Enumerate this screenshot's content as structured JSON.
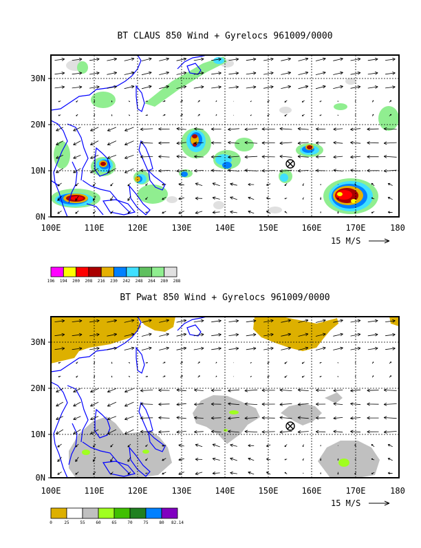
{
  "charts": [
    {
      "title": "BT CLAUS 850 Wind + Gyrelocs 961009/0000",
      "xticks": [
        "100E",
        "110E",
        "120E",
        "130E",
        "140E",
        "150E",
        "160E",
        "170E",
        "180"
      ],
      "yticks": [
        "0N",
        "10N",
        "20N",
        "30N"
      ],
      "legend_labels": [
        "196",
        "194",
        "200",
        "208",
        "216",
        "230",
        "242",
        "248",
        "264",
        "280",
        "288"
      ],
      "legend_colors": [
        "#ff00ff",
        "#ffff00",
        "#ff0000",
        "#aa0000",
        "#e6b000",
        "#0080ff",
        "#40e0ff",
        "#60c060",
        "#90ee90",
        "#e0e0e0"
      ]
    },
    {
      "title": "BT Pwat 850 Wind + Gyrelocs 961009/0000",
      "xticks": [
        "100E",
        "110E",
        "120E",
        "130E",
        "140E",
        "150E",
        "160E",
        "170E",
        "180"
      ],
      "yticks": [
        "0N",
        "10N",
        "20N",
        "30N"
      ],
      "legend_labels": [
        "0",
        "25",
        "55",
        "60",
        "65",
        "70",
        "75",
        "80",
        "82.14"
      ],
      "legend_colors": [
        "#ddb000",
        "#ffffff",
        "#c0c0c0",
        "#a0ff20",
        "#40c000",
        "#208020",
        "#0080ff",
        "#8000c0"
      ]
    }
  ],
  "vector_key": "15 M/S",
  "chart_data": [
    {
      "type": "heatmap",
      "title": "BT CLAUS 850 Wind + Gyrelocs 961009/0000",
      "xlim": [
        100,
        180
      ],
      "ylim": [
        0,
        35
      ],
      "gyre_location": {
        "lon": 155,
        "lat": 12
      }
    },
    {
      "type": "heatmap",
      "title": "BT Pwat 850 Wind + Gyrelocs 961009/0000",
      "xlim": [
        100,
        180
      ],
      "ylim": [
        0,
        35
      ],
      "gyre_location": {
        "lon": 155,
        "lat": 12
      }
    }
  ]
}
